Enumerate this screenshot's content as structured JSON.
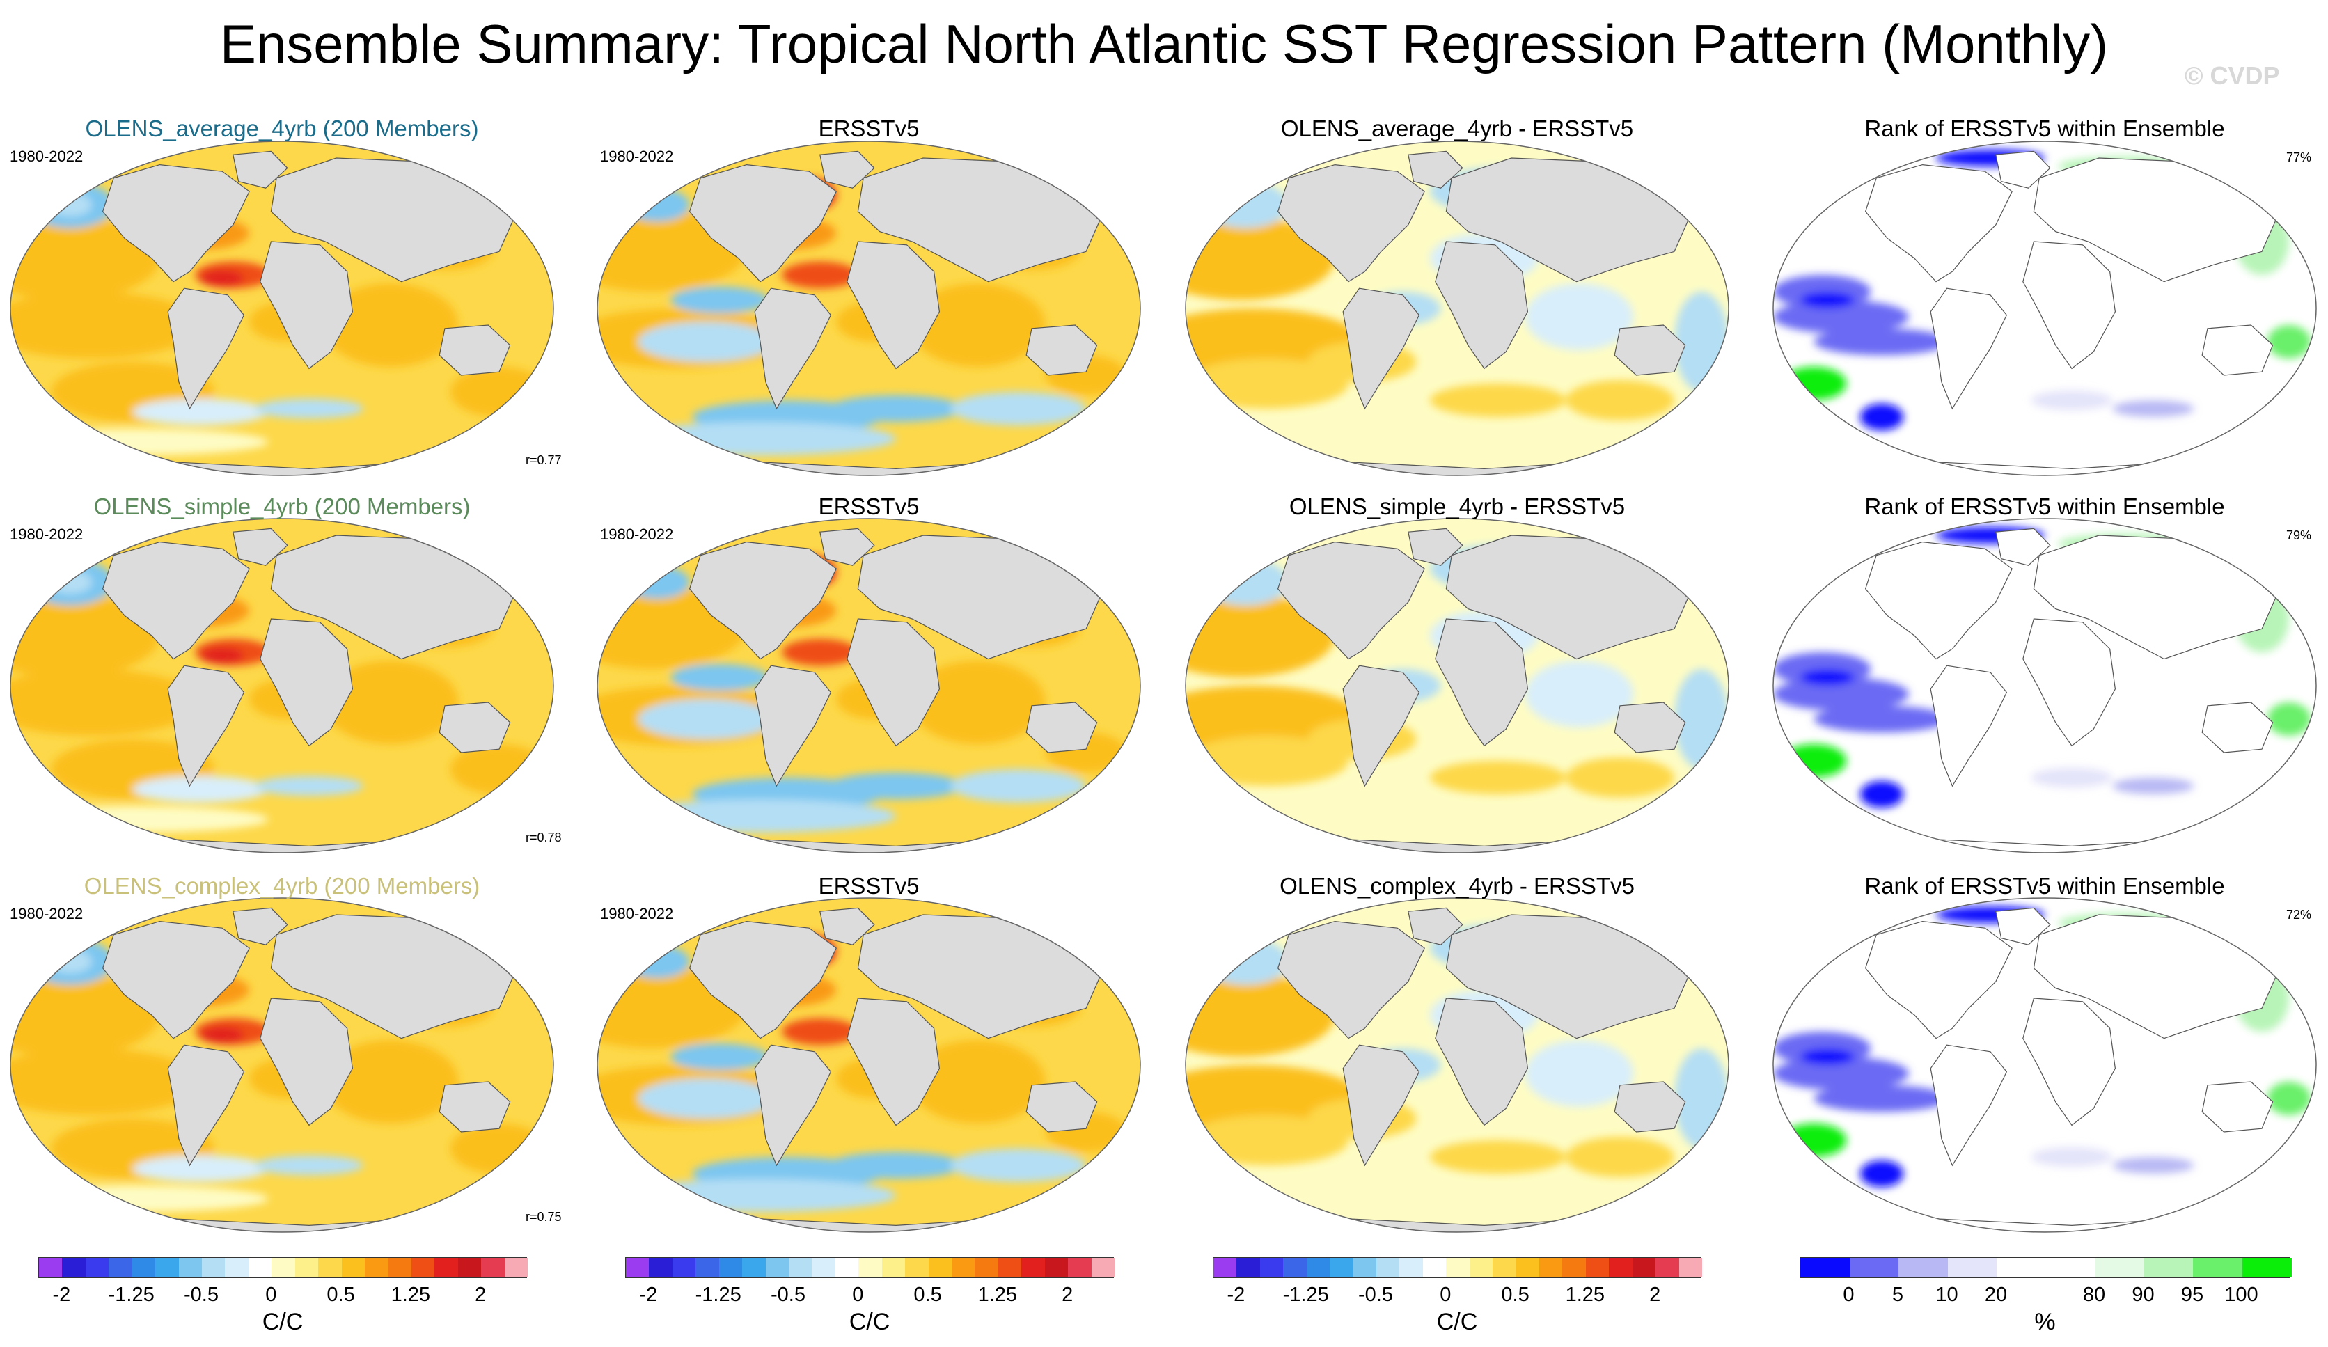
{
  "title": "Ensemble Summary: Tropical North Atlantic SST Regression Pattern (Monthly)",
  "watermark": "© CVDP",
  "chart_data": {
    "type": "heatmap",
    "description_units": "C/C",
    "rows": [
      {
        "ensemble_title": "OLENS_average_4yrb (200 Members)",
        "ensemble_title_color": "#1b6c8a",
        "ensemble_years": "1980-2022",
        "pattern_correlation": "r=0.77",
        "obs_title": "ERSSTv5",
        "obs_years": "1980-2022",
        "diff_title": "OLENS_average_4yrb - ERSSTv5",
        "rank_title": "Rank of ERSSTv5 within Ensemble",
        "rank_percent": "77%"
      },
      {
        "ensemble_title": "OLENS_simple_4yrb (200 Members)",
        "ensemble_title_color": "#5b8a5b",
        "ensemble_years": "1980-2022",
        "pattern_correlation": "r=0.78",
        "obs_title": "ERSSTv5",
        "obs_years": "1980-2022",
        "diff_title": "OLENS_simple_4yrb - ERSSTv5",
        "rank_title": "Rank of ERSSTv5 within Ensemble",
        "rank_percent": "79%"
      },
      {
        "ensemble_title": "OLENS_complex_4yrb (200 Members)",
        "ensemble_title_color": "#c9c07a",
        "ensemble_years": "1980-2022",
        "pattern_correlation": "r=0.75",
        "obs_title": "ERSSTv5",
        "obs_years": "1980-2022",
        "diff_title": "OLENS_complex_4yrb - ERSSTv5",
        "rank_title": "Rank of ERSSTv5 within Ensemble",
        "rank_percent": "72%"
      }
    ],
    "colorbars": [
      {
        "units": "C/C",
        "colors": [
          "#9c3cf0",
          "#2a1ed6",
          "#3a3aee",
          "#3c66e8",
          "#2e8ae6",
          "#3aa6ec",
          "#7cc6f0",
          "#b4def4",
          "#d8eefa",
          "#ffffff",
          "#fefcc4",
          "#fdf08a",
          "#fdd84a",
          "#fbbf1e",
          "#f99a12",
          "#f57a10",
          "#ef4e14",
          "#e2201e",
          "#c8181e",
          "#e63c52",
          "#f8aab4"
        ],
        "tick_labels": [
          "-2",
          "-1.25",
          "-0.5",
          "0",
          "0.5",
          "1.25",
          "2"
        ],
        "tick_positions": [
          1,
          4,
          7,
          10,
          13,
          16,
          19
        ]
      },
      {
        "units": "C/C",
        "colors": [
          "#9c3cf0",
          "#2a1ed6",
          "#3a3aee",
          "#3c66e8",
          "#2e8ae6",
          "#3aa6ec",
          "#7cc6f0",
          "#b4def4",
          "#d8eefa",
          "#ffffff",
          "#fefcc4",
          "#fdf08a",
          "#fdd84a",
          "#fbbf1e",
          "#f99a12",
          "#f57a10",
          "#ef4e14",
          "#e2201e",
          "#c8181e",
          "#e63c52",
          "#f8aab4"
        ],
        "tick_labels": [
          "-2",
          "-1.25",
          "-0.5",
          "0",
          "0.5",
          "1.25",
          "2"
        ],
        "tick_positions": [
          1,
          4,
          7,
          10,
          13,
          16,
          19
        ]
      },
      {
        "units": "C/C",
        "colors": [
          "#9c3cf0",
          "#2a1ed6",
          "#3a3aee",
          "#3c66e8",
          "#2e8ae6",
          "#3aa6ec",
          "#7cc6f0",
          "#b4def4",
          "#d8eefa",
          "#ffffff",
          "#fefcc4",
          "#fdf08a",
          "#fdd84a",
          "#fbbf1e",
          "#f99a12",
          "#f57a10",
          "#ef4e14",
          "#e2201e",
          "#c8181e",
          "#e63c52",
          "#f8aab4"
        ],
        "tick_labels": [
          "-2",
          "-1.25",
          "-0.5",
          "0",
          "0.5",
          "1.25",
          "2"
        ],
        "tick_positions": [
          1,
          4,
          7,
          10,
          13,
          16,
          19
        ]
      },
      {
        "units": "%",
        "colors": [
          "#0a0aff",
          "#6a6af4",
          "#b8b8f4",
          "#e4e4fa",
          "#ffffff",
          "#ffffff",
          "#e4fae4",
          "#b8f4b8",
          "#6af06a",
          "#0aee0a"
        ],
        "tick_labels": [
          "0",
          "5",
          "10",
          "20",
          "80",
          "90",
          "95",
          "100"
        ],
        "tick_positions": [
          1,
          2,
          3,
          4,
          6,
          7,
          8,
          9
        ]
      }
    ]
  }
}
